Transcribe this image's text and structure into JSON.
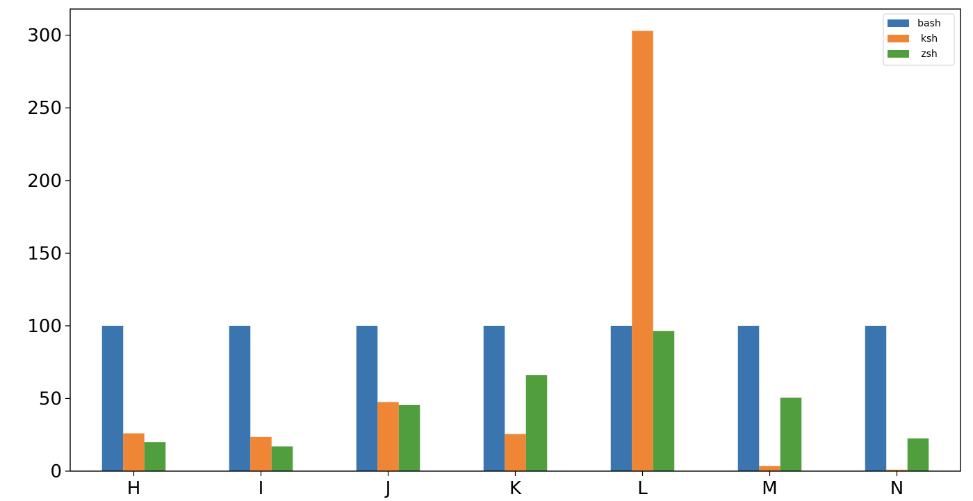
{
  "chart_data": {
    "type": "bar",
    "categories": [
      "H",
      "I",
      "J",
      "K",
      "L",
      "M",
      "N"
    ],
    "series": [
      {
        "name": "bash",
        "color": "#3a75af",
        "values": [
          100,
          100,
          100,
          100,
          100,
          100,
          100
        ]
      },
      {
        "name": "ksh",
        "color": "#ef8636",
        "values": [
          26,
          23.5,
          47.5,
          25.5,
          303,
          3.5,
          1
        ]
      },
      {
        "name": "zsh",
        "color": "#519e3e",
        "values": [
          20,
          17,
          45.5,
          66,
          96.5,
          50.5,
          22.5
        ]
      }
    ],
    "title": "",
    "xlabel": "",
    "ylabel": "",
    "ylim": [
      0,
      318
    ],
    "yticks": [
      0,
      50,
      100,
      150,
      200,
      250,
      300
    ],
    "grid": false,
    "legend_position": "top-right"
  }
}
